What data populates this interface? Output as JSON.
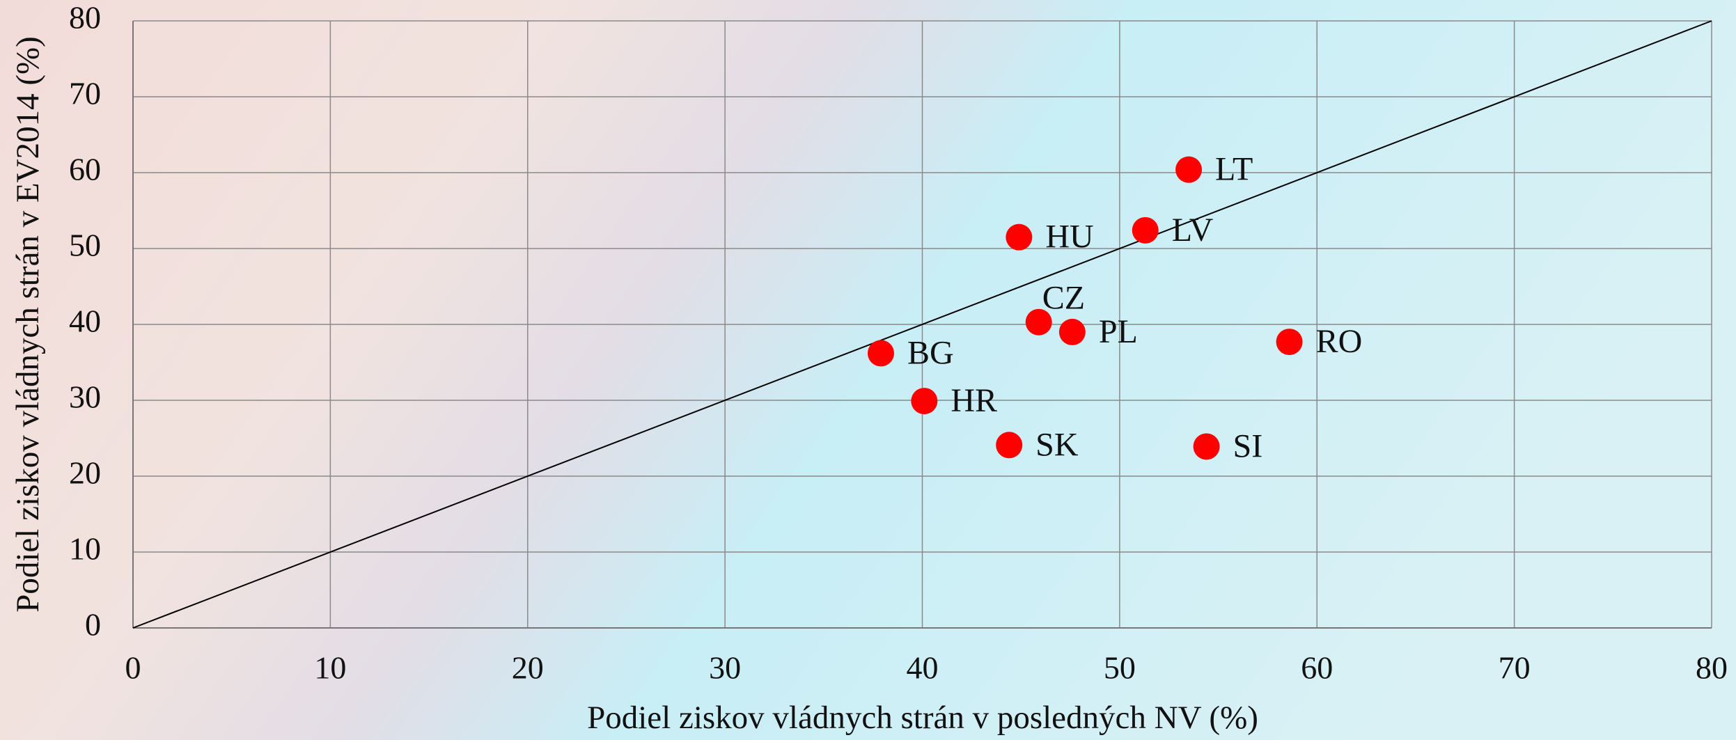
{
  "chart_data": {
    "type": "scatter",
    "x_label": "Podiel ziskov vládnych strán v posledných NV (%)",
    "y_label": "Podiel ziskov vládnych strán v EV2014 (%)",
    "series": [
      {
        "color": "#ff0000",
        "labels": [
          "LT",
          "HU",
          "LV",
          "CZ",
          "PL",
          "RO",
          "BG",
          "HR",
          "SK",
          "SI"
        ],
        "x": [
          53.5,
          44.9,
          51.3,
          45.9,
          47.6,
          58.6,
          37.9,
          40.1,
          44.4,
          54.4
        ],
        "values": [
          60.4,
          51.5,
          52.4,
          40.3,
          39.0,
          37.7,
          36.2,
          29.9,
          24.1,
          23.9
        ]
      }
    ],
    "xlim": [
      0,
      80
    ],
    "ylim": [
      0,
      80
    ],
    "xticks": [
      0,
      10,
      20,
      30,
      40,
      50,
      60,
      70,
      80
    ],
    "yticks": [
      0,
      10,
      20,
      30,
      40,
      50,
      60,
      70,
      80
    ],
    "grid": true,
    "diagonal": true
  }
}
